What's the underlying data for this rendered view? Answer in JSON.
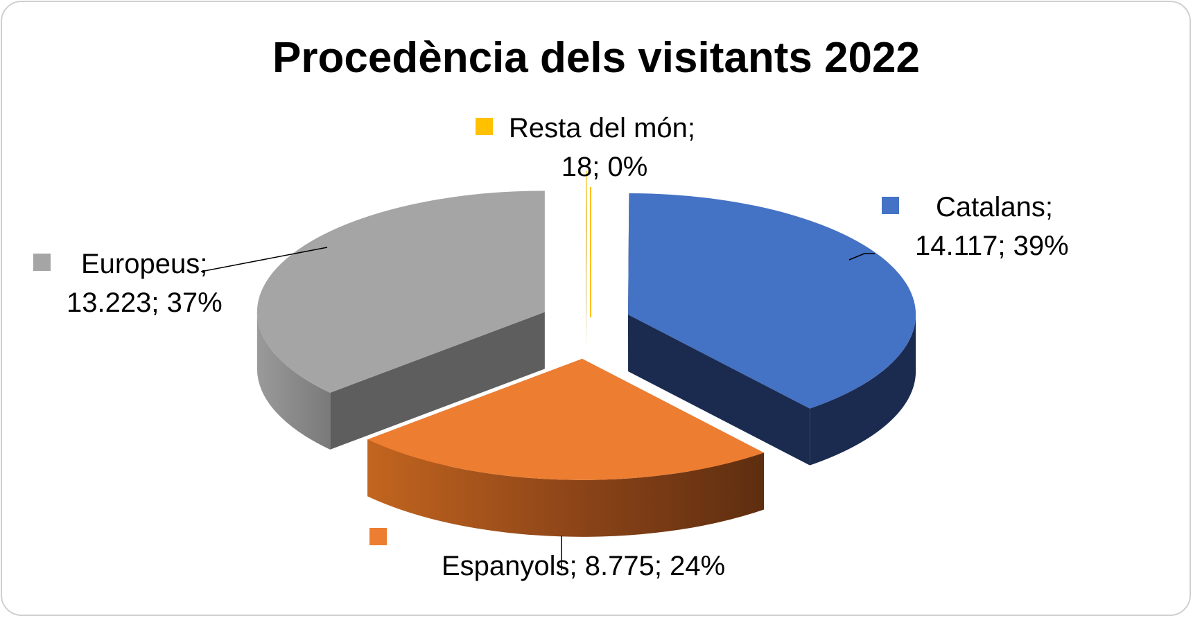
{
  "chart_data": {
    "type": "pie",
    "style": "3d-exploded",
    "title": "Procedència dels visitants 2022",
    "slices": [
      {
        "label": "Catalans",
        "value": 14117,
        "value_text": "14.117",
        "percent_text": "39%",
        "color": "#4472C4",
        "side_color": "#1B2B50"
      },
      {
        "label": "Espanyols",
        "value": 8775,
        "value_text": "8.775",
        "percent_text": "24%",
        "color": "#ED7D31",
        "side_color": "#8A4318"
      },
      {
        "label": "Europeus",
        "value": 13223,
        "value_text": "13.223",
        "percent_text": "37%",
        "color": "#A5A5A5",
        "side_color": "#5E5E5E"
      },
      {
        "label": "Resta del món",
        "value": 18,
        "value_text": "18",
        "percent_text": "0%",
        "color": "#FFC000",
        "side_color": "#B38700"
      }
    ],
    "legend": "data-labels-with-color-keys"
  },
  "labels": {
    "catalans_line1": "Catalans;",
    "catalans_line2": "14.117; 39%",
    "espanyols_line1": "Espanyols; 8.775; 24%",
    "europeus_line1": "Europeus;",
    "europeus_line2": "13.223; 37%",
    "resta_line1": "Resta del món;",
    "resta_line2": "18; 0%"
  }
}
